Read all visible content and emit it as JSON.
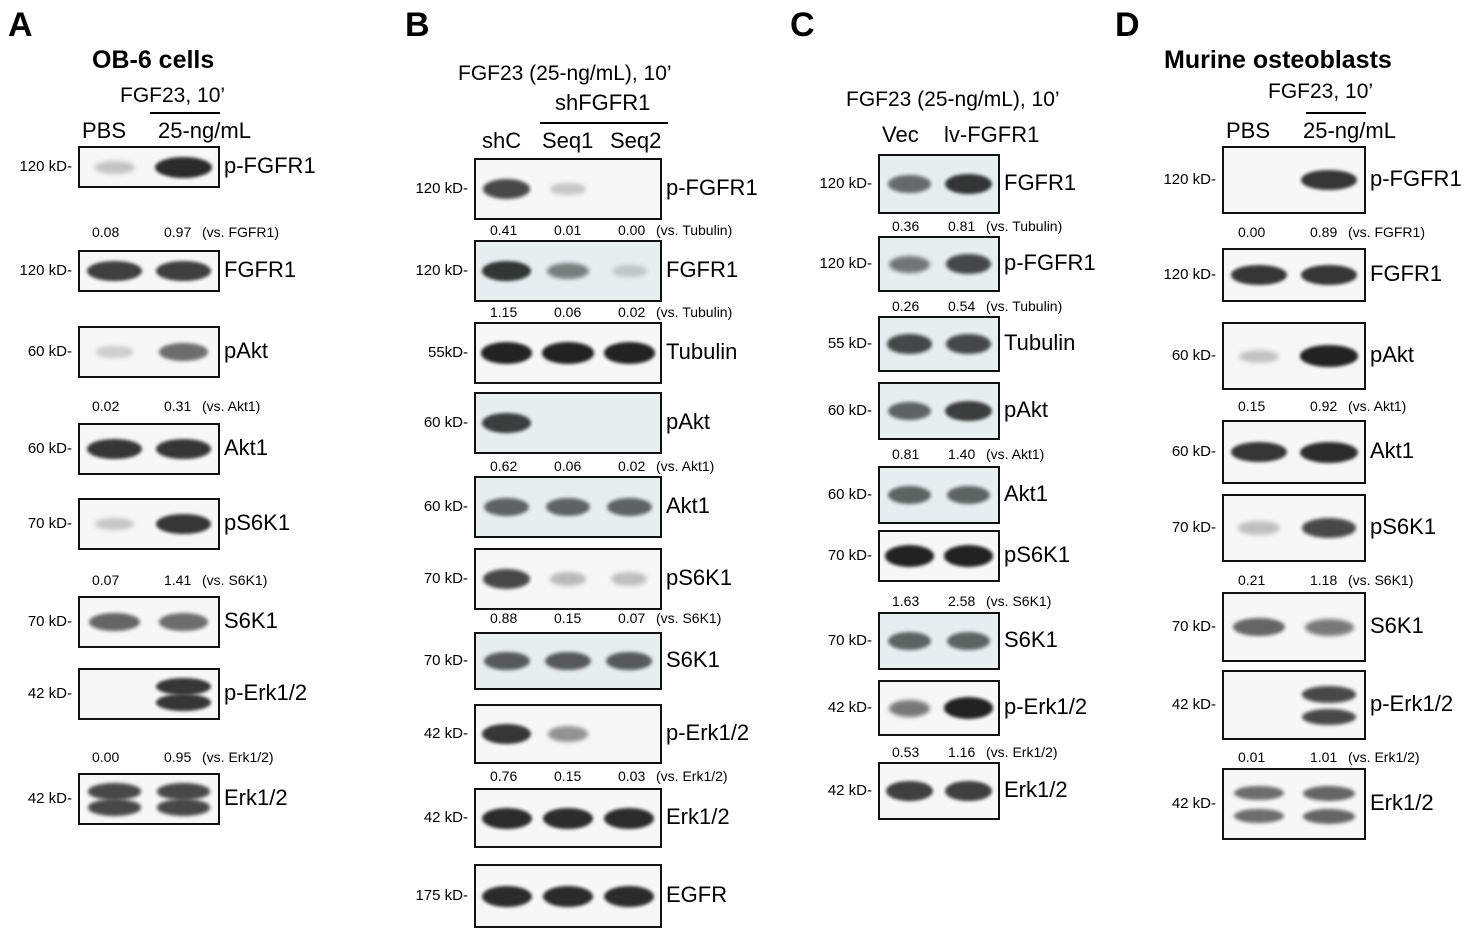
{
  "figure": {
    "panels": [
      {
        "id": "A",
        "letter": "A",
        "title": "OB-6 cells",
        "condition": "FGF23, 10’",
        "underline_label": "25-ng/mL",
        "lanes": [
          "PBS",
          "25-ng/mL"
        ],
        "lane_labels_shown": [
          "PBS"
        ],
        "blots": [
          {
            "mw": "120 kD-",
            "protein": "p-FGFR1",
            "intensity": [
              0.1,
              0.9
            ],
            "double": false,
            "quant": {
              "values": [
                "0.08",
                "0.97"
              ],
              "ref": "(vs. FGFR1)"
            }
          },
          {
            "mw": "120 kD-",
            "protein": "FGFR1",
            "intensity": [
              0.8,
              0.8
            ],
            "double": false,
            "quant": null
          },
          {
            "mw": "60 kD-",
            "protein": "pAkt",
            "intensity": [
              0.05,
              0.55
            ],
            "double": false,
            "quant": {
              "values": [
                "0.02",
                "0.31"
              ],
              "ref": "(vs. Akt1)"
            }
          },
          {
            "mw": "60 kD-",
            "protein": "Akt1",
            "intensity": [
              0.85,
              0.85
            ],
            "double": false,
            "quant": null
          },
          {
            "mw": "70 kD-",
            "protein": "pS6K1",
            "intensity": [
              0.08,
              0.85
            ],
            "double": false,
            "quant": {
              "values": [
                "0.07",
                "1.41"
              ],
              "ref": "(vs. S6K1)"
            }
          },
          {
            "mw": "70 kD-",
            "protein": "S6K1",
            "intensity": [
              0.6,
              0.55
            ],
            "double": false,
            "quant": null
          },
          {
            "mw": "42 kD-",
            "protein": "p-Erk1/2",
            "intensity": [
              0.0,
              0.85
            ],
            "double": true,
            "quant": {
              "values": [
                "0.00",
                "0.95"
              ],
              "ref": "(vs. Erk1/2)"
            }
          },
          {
            "mw": "42 kD-",
            "protein": "Erk1/2",
            "intensity": [
              0.75,
              0.75
            ],
            "double": true,
            "quant": null
          }
        ]
      },
      {
        "id": "B",
        "letter": "B",
        "title": "",
        "condition": "FGF23 (25-ng/mL), 10’",
        "underline_label": "shFGFR1",
        "lanes": [
          "shC",
          "Seq1",
          "Seq2"
        ],
        "blots": [
          {
            "mw": "120 kD-",
            "protein": "p-FGFR1",
            "intensity": [
              0.75,
              0.08,
              0.0
            ],
            "double": false,
            "quant": {
              "values": [
                "0.41",
                "0.01",
                "0.00"
              ],
              "ref": "(vs. Tubulin)"
            }
          },
          {
            "mw": "120 kD-",
            "protein": "FGFR1",
            "intensity": [
              0.85,
              0.45,
              0.05
            ],
            "double": false,
            "quant": {
              "values": [
                "1.15",
                "0.06",
                "0.02"
              ],
              "ref": "(vs. Tubulin)"
            }
          },
          {
            "mw": "55kD-",
            "protein": "Tubulin",
            "intensity": [
              0.95,
              0.95,
              0.95
            ],
            "double": false,
            "quant": null
          },
          {
            "mw": "60 kD-",
            "protein": "pAkt",
            "intensity": [
              0.8,
              0.0,
              0.0
            ],
            "double": false,
            "quant": {
              "values": [
                "0.62",
                "0.06",
                "0.02"
              ],
              "ref": "(vs. Akt1)"
            }
          },
          {
            "mw": "60 kD-",
            "protein": "Akt1",
            "intensity": [
              0.6,
              0.6,
              0.6
            ],
            "double": false,
            "quant": null
          },
          {
            "mw": "70 kD-",
            "protein": "pS6K1",
            "intensity": [
              0.75,
              0.15,
              0.12
            ],
            "double": false,
            "quant": {
              "values": [
                "0.88",
                "0.15",
                "0.07"
              ],
              "ref": "(vs. S6K1)"
            }
          },
          {
            "mw": "70 kD-",
            "protein": "S6K1",
            "intensity": [
              0.65,
              0.65,
              0.65
            ],
            "double": false,
            "quant": null
          },
          {
            "mw": "42 kD-",
            "protein": "p-Erk1/2",
            "intensity": [
              0.85,
              0.35,
              0.0
            ],
            "double": false,
            "quant": {
              "values": [
                "0.76",
                "0.15",
                "0.03"
              ],
              "ref": "(vs. Erk1/2)"
            }
          },
          {
            "mw": "42 kD-",
            "protein": "Erk1/2",
            "intensity": [
              0.9,
              0.9,
              0.9
            ],
            "double": false,
            "quant": null
          },
          {
            "mw": "175 kD-",
            "protein": "EGFR",
            "intensity": [
              0.9,
              0.9,
              0.9
            ],
            "double": false,
            "quant": null
          }
        ]
      },
      {
        "id": "C",
        "letter": "C",
        "title": "",
        "condition": "FGF23 (25-ng/mL), 10’",
        "underline_label": "",
        "lanes": [
          "Vec",
          "lv-FGFR1"
        ],
        "blots": [
          {
            "mw": "120 kD-",
            "protein": "FGFR1",
            "intensity": [
              0.55,
              0.85
            ],
            "double": false,
            "quant": {
              "values": [
                "0.36",
                "0.81"
              ],
              "ref": "(vs. Tubulin)"
            }
          },
          {
            "mw": "120 kD-",
            "protein": "p-FGFR1",
            "intensity": [
              0.5,
              0.75
            ],
            "double": false,
            "quant": {
              "values": [
                "0.26",
                "0.54"
              ],
              "ref": "(vs. Tubulin)"
            }
          },
          {
            "mw": "55 kD-",
            "protein": "Tubulin",
            "intensity": [
              0.75,
              0.75
            ],
            "double": false,
            "quant": null
          },
          {
            "mw": "60 kD-",
            "protein": "pAkt",
            "intensity": [
              0.6,
              0.8
            ],
            "double": false,
            "quant": {
              "values": [
                "0.81",
                "1.40"
              ],
              "ref": "(vs. Akt1)"
            }
          },
          {
            "mw": "60 kD-",
            "protein": "Akt1",
            "intensity": [
              0.6,
              0.6
            ],
            "double": false,
            "quant": null
          },
          {
            "mw": "70 kD-",
            "protein": "pS6K1",
            "intensity": [
              0.95,
              0.95
            ],
            "double": false,
            "quant": {
              "values": [
                "1.63",
                "2.58"
              ],
              "ref": "(vs. S6K1)"
            }
          },
          {
            "mw": "70 kD-",
            "protein": "S6K1",
            "intensity": [
              0.6,
              0.6
            ],
            "double": false,
            "quant": null
          },
          {
            "mw": "42 kD-",
            "protein": "p-Erk1/2",
            "intensity": [
              0.5,
              0.95
            ],
            "double": false,
            "quant": {
              "values": [
                "0.53",
                "1.16"
              ],
              "ref": "(vs. Erk1/2)"
            }
          },
          {
            "mw": "42 kD-",
            "protein": "Erk1/2",
            "intensity": [
              0.8,
              0.8
            ],
            "double": false,
            "quant": null
          }
        ]
      },
      {
        "id": "D",
        "letter": "D",
        "title": "Murine osteoblasts",
        "condition": "FGF23, 10’",
        "underline_label": "25-ng/mL",
        "lanes": [
          "PBS",
          "25-ng/mL"
        ],
        "lane_labels_shown": [
          "PBS"
        ],
        "blots": [
          {
            "mw": "120 kD-",
            "protein": "p-FGFR1",
            "intensity": [
              0.0,
              0.85
            ],
            "double": false,
            "quant": {
              "values": [
                "0.00",
                "0.89"
              ],
              "ref": "(vs. FGFR1)"
            }
          },
          {
            "mw": "120 kD-",
            "protein": "FGFR1",
            "intensity": [
              0.85,
              0.85
            ],
            "double": false,
            "quant": null
          },
          {
            "mw": "60 kD-",
            "protein": "pAkt",
            "intensity": [
              0.1,
              0.95
            ],
            "double": false,
            "quant": {
              "values": [
                "0.15",
                "0.92"
              ],
              "ref": "(vs. Akt1)"
            }
          },
          {
            "mw": "60 kD-",
            "protein": "Akt1",
            "intensity": [
              0.85,
              0.9
            ],
            "double": false,
            "quant": null
          },
          {
            "mw": "70 kD-",
            "protein": "pS6K1",
            "intensity": [
              0.12,
              0.75
            ],
            "double": false,
            "quant": {
              "values": [
                "0.21",
                "1.18"
              ],
              "ref": "(vs. S6K1)"
            }
          },
          {
            "mw": "70 kD-",
            "protein": "S6K1",
            "intensity": [
              0.6,
              0.5
            ],
            "double": false,
            "quant": null
          },
          {
            "mw": "42 kD-",
            "protein": "p-Erk1/2",
            "intensity": [
              0.0,
              0.75
            ],
            "double": true,
            "quant": {
              "values": [
                "0.01",
                "1.01"
              ],
              "ref": "(vs. Erk1/2)"
            }
          },
          {
            "mw": "42 kD-",
            "protein": "Erk1/2",
            "intensity": [
              0.55,
              0.6
            ],
            "double": true,
            "quant": null
          }
        ]
      }
    ],
    "colors": {
      "band": "#1a1a1a",
      "blot_bg": "#f7f7f7",
      "blot_tint_blue": "#e6eef0",
      "border": "#111111"
    }
  }
}
